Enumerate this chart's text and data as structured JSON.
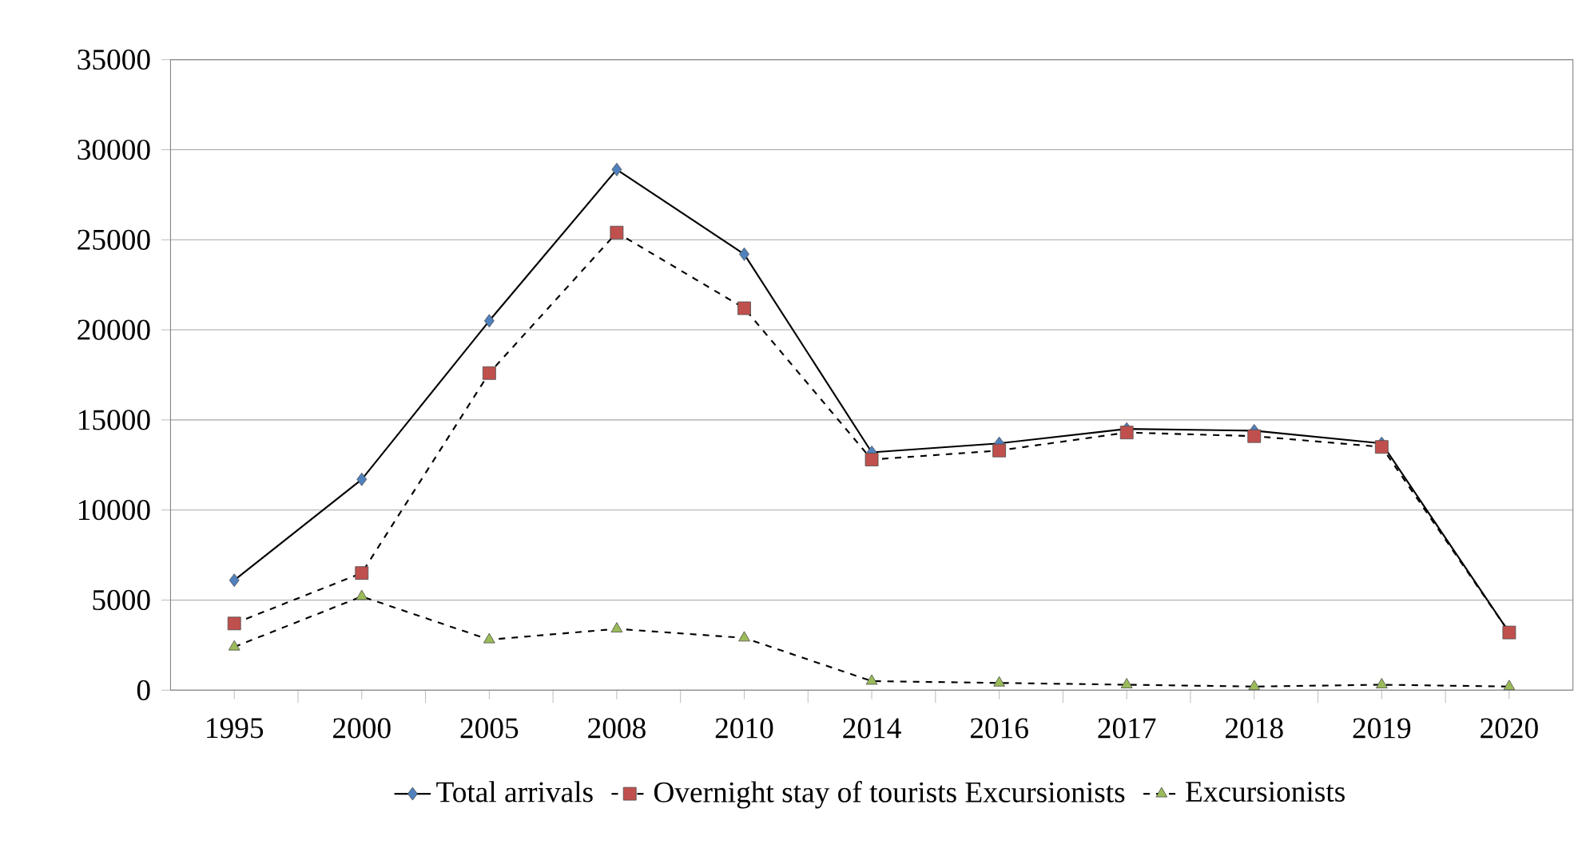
{
  "chart_data": {
    "type": "line",
    "categories": [
      "1995",
      "2000",
      "2005",
      "2008",
      "2010",
      "2014",
      "2016",
      "2017",
      "2018",
      "2019",
      "2020"
    ],
    "series": [
      {
        "name": "Total arrivals",
        "color": "#4f81bd",
        "marker": "diamond",
        "line_style": "solid",
        "values": [
          6100,
          11700,
          20500,
          28900,
          24200,
          13200,
          13700,
          14500,
          14400,
          13700,
          3200
        ]
      },
      {
        "name": "Overnight stay of tourists Excursionists",
        "color": "#c0504d",
        "marker": "square",
        "line_style": "dashed",
        "values": [
          3700,
          6500,
          17600,
          25400,
          21200,
          12800,
          13300,
          14300,
          14100,
          13500,
          3200
        ]
      },
      {
        "name": "Excursionists",
        "color": "#9bbb59",
        "marker": "triangle",
        "line_style": "dashed",
        "values": [
          2400,
          5200,
          2800,
          3400,
          2900,
          500,
          400,
          300,
          200,
          300,
          200
        ]
      }
    ],
    "ylim": [
      0,
      35000
    ],
    "yticks": [
      0,
      5000,
      10000,
      15000,
      20000,
      25000,
      30000,
      35000
    ],
    "grid": "y",
    "legend": "bottom"
  }
}
